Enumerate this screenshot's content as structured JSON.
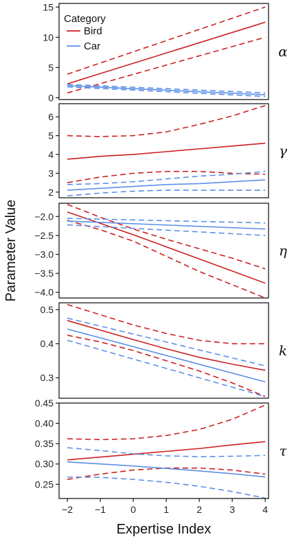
{
  "chart_data": {
    "type": "line",
    "xlabel": "Expertise Index",
    "ylabel": "Parameter Value",
    "xlim": [
      -2.25,
      4.1
    ],
    "xticks": [
      -2,
      -1,
      0,
      1,
      2,
      3,
      4
    ],
    "xtick_labels": [
      "−2",
      "−1",
      "0",
      "1",
      "2",
      "3",
      "4"
    ],
    "grid": false,
    "legend": {
      "title": "Category",
      "position": "top-left",
      "entries": [
        {
          "name": "Bird",
          "color": "#cc1f1f"
        },
        {
          "name": "Car",
          "color": "#5b8fe8"
        }
      ]
    },
    "series_colors": {
      "Bird": "#cc1f1f",
      "Car": "#5b8fe8"
    },
    "panels": [
      {
        "label": "α",
        "ylim": [
          -0.3,
          15.6
        ],
        "yticks": [
          0,
          5,
          10,
          15
        ],
        "ytick_labels": [
          "0",
          "5",
          "10",
          "15"
        ],
        "series": [
          {
            "name": "Bird",
            "x": [
              -2,
              4
            ],
            "fit": [
              2.3,
              12.5
            ],
            "lower": [
              0.8,
              10.0
            ],
            "upper": [
              3.9,
              15.0
            ]
          },
          {
            "name": "Car",
            "x": [
              -2,
              4
            ],
            "fit": [
              2.0,
              0.5
            ],
            "lower": [
              1.8,
              0.2
            ],
            "upper": [
              2.2,
              0.8
            ]
          }
        ]
      },
      {
        "label": "γ",
        "ylim": [
          1.7,
          6.7
        ],
        "yticks": [
          2,
          3,
          4,
          5,
          6
        ],
        "ytick_labels": [
          "2",
          "3",
          "4",
          "5",
          "6"
        ],
        "series": [
          {
            "name": "Bird",
            "x": [
              -2,
              -1,
              0,
              1,
              2,
              3,
              4
            ],
            "fit": [
              3.75,
              3.9,
              4.0,
              4.15,
              4.3,
              4.45,
              4.6
            ],
            "lower": [
              2.5,
              2.8,
              3.0,
              3.1,
              3.1,
              3.0,
              2.95
            ],
            "upper": [
              5.0,
              4.95,
              5.0,
              5.2,
              5.6,
              6.05,
              6.6
            ]
          },
          {
            "name": "Car",
            "x": [
              -2,
              -1,
              0,
              1,
              2,
              3,
              4
            ],
            "fit": [
              2.1,
              2.2,
              2.3,
              2.4,
              2.45,
              2.55,
              2.65
            ],
            "lower": [
              1.8,
              1.95,
              2.05,
              2.1,
              2.1,
              2.1,
              2.1
            ],
            "upper": [
              2.4,
              2.45,
              2.55,
              2.7,
              2.85,
              2.95,
              3.1
            ]
          }
        ]
      },
      {
        "label": "η",
        "ylim": [
          -4.15,
          -1.65
        ],
        "yticks": [
          -2.0,
          -2.5,
          -3.0,
          -3.5,
          -4.0
        ],
        "ytick_labels": [
          "−2.0",
          "−2.5",
          "−3.0",
          "−3.5",
          "−4.0"
        ],
        "series": [
          {
            "name": "Bird",
            "x": [
              -2,
              -1,
              0,
              1,
              2,
              3,
              4
            ],
            "fit": [
              -1.88,
              -2.18,
              -2.48,
              -2.8,
              -3.12,
              -3.44,
              -3.76
            ],
            "lower": [
              -2.1,
              -2.35,
              -2.65,
              -3.05,
              -3.45,
              -3.8,
              -4.15
            ],
            "upper": [
              -1.68,
              -2.02,
              -2.33,
              -2.6,
              -2.85,
              -3.1,
              -3.38
            ]
          },
          {
            "name": "Car",
            "x": [
              -2,
              4
            ],
            "fit": [
              -2.12,
              -2.33
            ],
            "lower": [
              -2.22,
              -2.5
            ],
            "upper": [
              -2.05,
              -2.17
            ]
          }
        ]
      },
      {
        "label": "k",
        "ylim": [
          0.24,
          0.52
        ],
        "yticks": [
          0.3,
          0.4,
          0.5
        ],
        "ytick_labels": [
          "0.3",
          "0.4",
          "0.5"
        ],
        "series": [
          {
            "name": "Bird",
            "x": [
              -2,
              -1,
              0,
              1,
              2,
              3,
              4
            ],
            "fit": [
              0.468,
              0.44,
              0.412,
              0.385,
              0.36,
              0.34,
              0.322
            ],
            "lower": [
              0.425,
              0.405,
              0.38,
              0.35,
              0.32,
              0.285,
              0.245
            ],
            "upper": [
              0.515,
              0.485,
              0.455,
              0.43,
              0.41,
              0.4,
              0.4
            ]
          },
          {
            "name": "Car",
            "x": [
              -2,
              4
            ],
            "fit": [
              0.443,
              0.288
            ],
            "lower": [
              0.41,
              0.245
            ],
            "upper": [
              0.475,
              0.335
            ]
          }
        ]
      },
      {
        "label": "τ",
        "ylim": [
          0.215,
          0.45
        ],
        "yticks": [
          0.25,
          0.3,
          0.35,
          0.4,
          0.45
        ],
        "ytick_labels": [
          "0.25",
          "0.30",
          "0.35",
          "0.40",
          "0.45"
        ],
        "series": [
          {
            "name": "Bird",
            "x": [
              -2,
              -1,
              0,
              1,
              2,
              3,
              4
            ],
            "fit": [
              0.31,
              0.317,
              0.324,
              0.331,
              0.338,
              0.347,
              0.355
            ],
            "lower": [
              0.262,
              0.275,
              0.285,
              0.29,
              0.29,
              0.285,
              0.275
            ],
            "upper": [
              0.362,
              0.36,
              0.362,
              0.37,
              0.385,
              0.41,
              0.445
            ]
          },
          {
            "name": "Car",
            "x": [
              -2,
              -1,
              0,
              1,
              2,
              3,
              4
            ],
            "fit": [
              0.305,
              0.3,
              0.295,
              0.289,
              0.283,
              0.276,
              0.268
            ],
            "lower": [
              0.268,
              0.267,
              0.262,
              0.255,
              0.245,
              0.232,
              0.216
            ],
            "upper": [
              0.34,
              0.333,
              0.325,
              0.32,
              0.318,
              0.319,
              0.321
            ]
          }
        ]
      }
    ]
  }
}
